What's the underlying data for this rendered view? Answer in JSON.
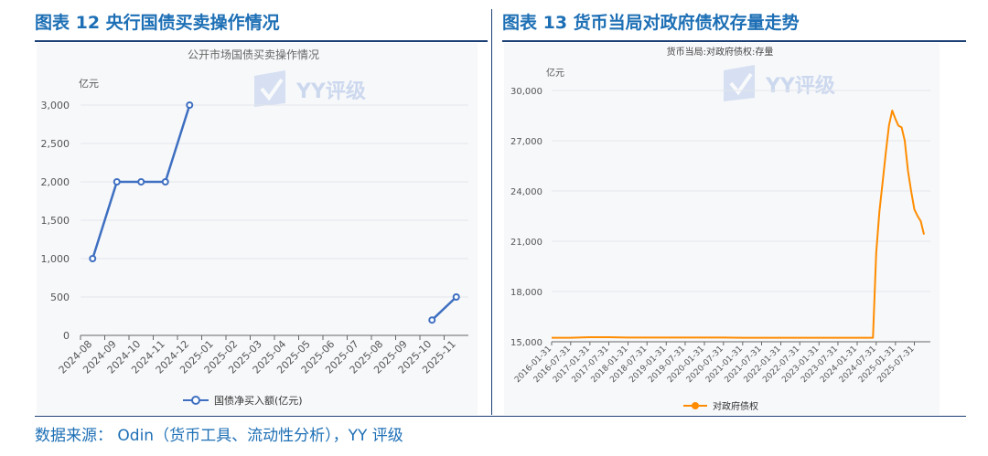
{
  "header": {
    "left_title": "图表 12 央行国债买卖操作情况",
    "right_title": "图表 13 货币当局对政府债权存量走势"
  },
  "watermark": {
    "text": "YY评级"
  },
  "source": "数据来源： Odin（货币工具、流动性分析），YY 评级",
  "colors": {
    "left_line": "#3e6fc1",
    "right_line": "#ff8c00",
    "title_blue": "#1d6fb5",
    "rule": "#1c3f75"
  },
  "chart_data": [
    {
      "type": "line",
      "title": "公开市场国债买卖操作情况",
      "unit_label": "亿元",
      "categories": [
        "2024-08",
        "2024-09",
        "2024-10",
        "2024-11",
        "2024-12",
        "2025-01",
        "2025-02",
        "2025-03",
        "2025-04",
        "2025-05",
        "2025-06",
        "2025-07",
        "2025-08",
        "2025-09",
        "2025-10",
        "2025-11"
      ],
      "yticks": [
        "3,000",
        "2,500",
        "2,000",
        "1,500",
        "1,000",
        "500",
        "0"
      ],
      "ylim": [
        0,
        3000
      ],
      "series": [
        {
          "name": "国债净买入额(亿元)",
          "values": [
            1000,
            2000,
            2000,
            2000,
            3000,
            null,
            null,
            null,
            null,
            null,
            null,
            null,
            null,
            null,
            200,
            500
          ]
        }
      ],
      "legend": "bottom-center",
      "grid": true
    },
    {
      "type": "line",
      "title": "货币当局:对政府债权:存量",
      "unit_label": "亿元",
      "x": [
        "2016-01-31",
        "2016-07-31",
        "2017-01-31",
        "2017-07-31",
        "2018-01-31",
        "2018-07-31",
        "2019-01-31",
        "2019-07-31",
        "2020-01-31",
        "2020-07-31",
        "2021-01-31",
        "2021-07-31",
        "2022-01-31",
        "2022-07-31",
        "2023-01-31",
        "2023-07-31",
        "2024-01-31",
        "2024-07-31",
        "2025-01-31",
        "2025-07-31"
      ],
      "yticks": [
        "30,000",
        "27,000",
        "24,000",
        "21,000",
        "18,000",
        "15,000"
      ],
      "ylim": [
        15000,
        30000
      ],
      "series": [
        {
          "name": "对政府债权",
          "points": [
            [
              "2016-01-31",
              15240
            ],
            [
              "2016-07-31",
              15240
            ],
            [
              "2017-01-31",
              15274
            ],
            [
              "2017-07-31",
              15274
            ],
            [
              "2018-01-31",
              15250
            ],
            [
              "2018-07-31",
              15250
            ],
            [
              "2019-01-31",
              15250
            ],
            [
              "2019-07-31",
              15250
            ],
            [
              "2020-01-31",
              15250
            ],
            [
              "2020-07-31",
              15250
            ],
            [
              "2021-01-31",
              15240
            ],
            [
              "2021-07-31",
              15240
            ],
            [
              "2022-01-31",
              15240
            ],
            [
              "2022-07-31",
              15240
            ],
            [
              "2023-01-31",
              15240
            ],
            [
              "2023-07-31",
              15240
            ],
            [
              "2024-01-31",
              15240
            ],
            [
              "2024-06-30",
              15240
            ],
            [
              "2024-07-31",
              20300
            ],
            [
              "2024-08-31",
              22800
            ],
            [
              "2024-09-30",
              24500
            ],
            [
              "2024-10-31",
              26300
            ],
            [
              "2024-11-30",
              27900
            ],
            [
              "2024-12-31",
              28800
            ],
            [
              "2025-01-31",
              28300
            ],
            [
              "2025-02-28",
              27900
            ],
            [
              "2025-03-31",
              27800
            ],
            [
              "2025-04-30",
              27000
            ],
            [
              "2025-05-31",
              25200
            ],
            [
              "2025-06-30",
              24000
            ],
            [
              "2025-07-31",
              22900
            ],
            [
              "2025-08-31",
              22500
            ],
            [
              "2025-09-30",
              22200
            ],
            [
              "2025-10-31",
              21400
            ]
          ]
        }
      ],
      "legend": "bottom-center",
      "grid": true
    }
  ]
}
